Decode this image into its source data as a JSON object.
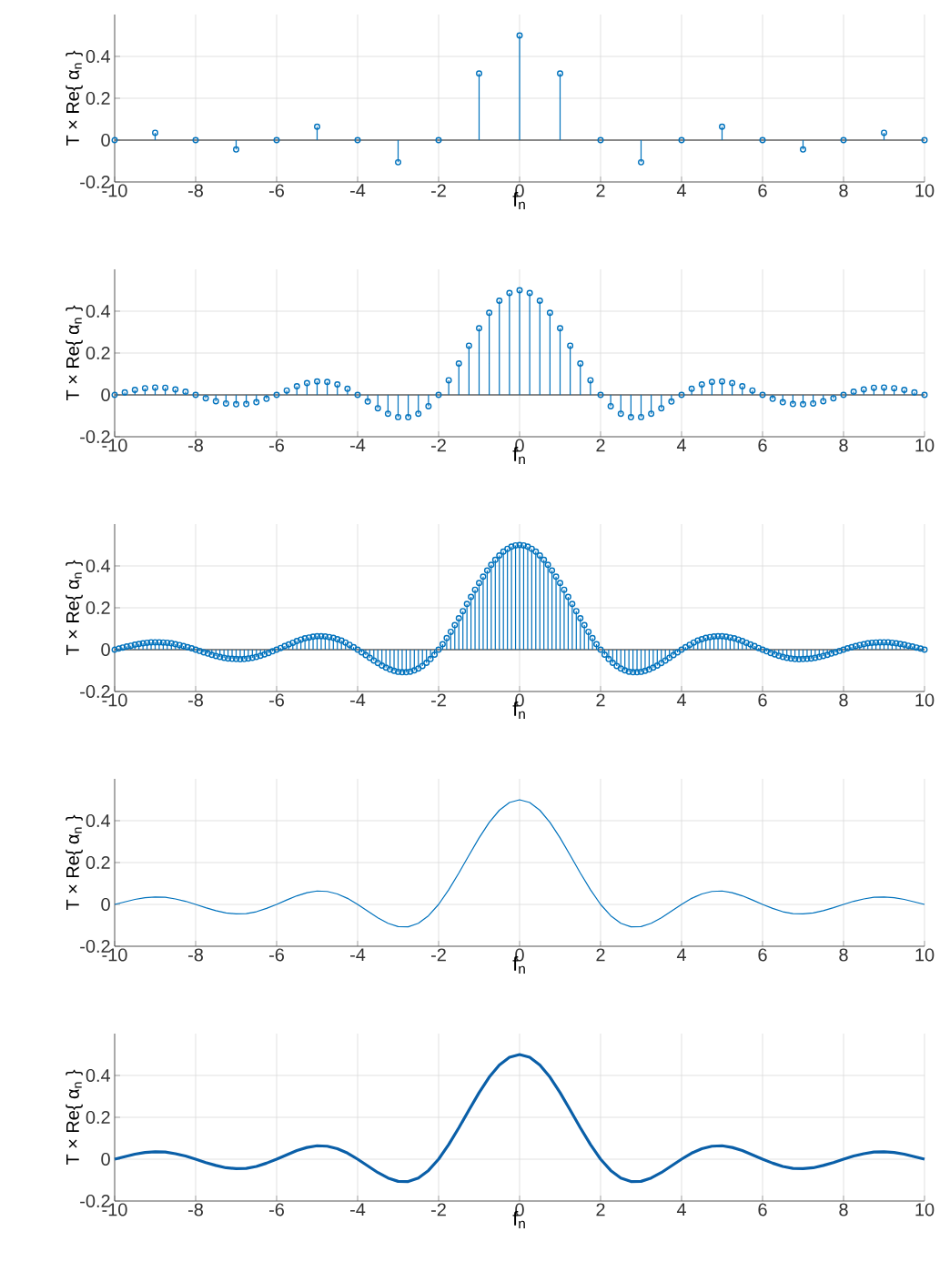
{
  "chart_data": [
    {
      "type": "lollipop",
      "xlabel": "f$_{n}$",
      "ylabel": "T × Re{ α$_{n}$ }",
      "color": "#0072bd",
      "marker": "circle",
      "grid": true,
      "xlim": [
        -10,
        10
      ],
      "ylim": [
        -0.2,
        0.6
      ],
      "xticks": [
        -10,
        -8,
        -6,
        -4,
        -2,
        0,
        2,
        4,
        6,
        8,
        10
      ],
      "yticks": [
        -0.2,
        0,
        0.2,
        0.4
      ],
      "x": [
        -10,
        -9,
        -8,
        -7,
        -6,
        -5,
        -4,
        -3,
        -2,
        -1,
        0,
        1,
        2,
        3,
        4,
        5,
        6,
        7,
        8,
        9,
        10
      ],
      "values": [
        0,
        0.035,
        0,
        -0.045,
        0,
        0.064,
        0,
        -0.106,
        0,
        0.318,
        0.5,
        0.318,
        0,
        -0.106,
        0,
        0.064,
        0,
        -0.045,
        0,
        0.035,
        0
      ]
    },
    {
      "type": "lollipop",
      "xlabel": "f$_{n}$",
      "ylabel": "T × Re{ α$_{n}$ }",
      "color": "#0072bd",
      "marker": "circle",
      "grid": true,
      "xlim": [
        -10,
        10
      ],
      "ylim": [
        -0.2,
        0.6
      ],
      "xticks": [
        -10,
        -8,
        -6,
        -4,
        -2,
        0,
        2,
        4,
        6,
        8,
        10
      ],
      "yticks": [
        -0.2,
        0,
        0.2,
        0.4
      ],
      "x": [
        -10,
        -9.75,
        -9.5,
        -9.25,
        -9,
        -8.75,
        -8.5,
        -8.25,
        -8,
        -7.75,
        -7.5,
        -7.25,
        -7,
        -6.75,
        -6.5,
        -6.25,
        -6,
        -5.75,
        -5.5,
        -5.25,
        -5,
        -4.75,
        -4.5,
        -4.25,
        -4,
        -3.75,
        -3.5,
        -3.25,
        -3,
        -2.75,
        -2.5,
        -2.25,
        -2,
        -1.75,
        -1.5,
        -1.25,
        -1,
        -0.75,
        -0.5,
        -0.25,
        0,
        0.25,
        0.5,
        0.75,
        1,
        1.25,
        1.5,
        1.75,
        2,
        2.25,
        2.5,
        2.75,
        3,
        3.25,
        3.5,
        3.75,
        4,
        4.25,
        4.5,
        4.75,
        5,
        5.25,
        5.5,
        5.75,
        6,
        6.25,
        6.5,
        6.75,
        7,
        7.25,
        7.5,
        7.75,
        8,
        8.25,
        8.5,
        8.75,
        9,
        9.25,
        9.5,
        9.75,
        10
      ],
      "values": [
        0,
        0.012,
        0.024,
        0.032,
        0.035,
        0.034,
        0.026,
        0.015,
        0,
        -0.016,
        -0.03,
        -0.041,
        -0.045,
        -0.044,
        -0.035,
        -0.019,
        0,
        0.021,
        0.041,
        0.056,
        0.064,
        0.062,
        0.05,
        0.029,
        0,
        -0.032,
        -0.064,
        -0.09,
        -0.106,
        -0.107,
        -0.09,
        -0.054,
        0,
        0.07,
        0.15,
        0.235,
        0.318,
        0.392,
        0.45,
        0.487,
        0.5,
        0.487,
        0.45,
        0.392,
        0.318,
        0.235,
        0.15,
        0.07,
        0,
        -0.054,
        -0.09,
        -0.107,
        -0.106,
        -0.09,
        -0.064,
        -0.032,
        0,
        0.029,
        0.05,
        0.062,
        0.064,
        0.056,
        0.041,
        0.021,
        0,
        -0.019,
        -0.035,
        -0.044,
        -0.045,
        -0.041,
        -0.03,
        -0.016,
        0,
        0.015,
        0.026,
        0.034,
        0.035,
        0.032,
        0.024,
        0.012,
        0
      ]
    },
    {
      "type": "lollipop",
      "xlabel": "f$_{n}$",
      "ylabel": "T × Re{ α$_{n}$ }",
      "color": "#0072bd",
      "marker": "circle",
      "grid": true,
      "xlim": [
        -10,
        10
      ],
      "ylim": [
        -0.2,
        0.6
      ],
      "xticks": [
        -10,
        -8,
        -6,
        -4,
        -2,
        0,
        2,
        4,
        6,
        8,
        10
      ],
      "yticks": [
        -0.2,
        0,
        0.2,
        0.4
      ],
      "x": [
        -10,
        -9.9,
        -9.8,
        -9.7,
        -9.6,
        -9.5,
        -9.4,
        -9.3,
        -9.2,
        -9.1,
        -9,
        -8.9,
        -8.8,
        -8.7,
        -8.6,
        -8.5,
        -8.4,
        -8.3,
        -8.2,
        -8.1,
        -8,
        -7.9,
        -7.8,
        -7.7,
        -7.6,
        -7.5,
        -7.4,
        -7.3,
        -7.2,
        -7.1,
        -7,
        -6.9,
        -6.8,
        -6.7,
        -6.6,
        -6.5,
        -6.4,
        -6.3,
        -6.2,
        -6.1,
        -6,
        -5.9,
        -5.8,
        -5.7,
        -5.6,
        -5.5,
        -5.4,
        -5.3,
        -5.2,
        -5.1,
        -5,
        -4.9,
        -4.8,
        -4.7,
        -4.6,
        -4.5,
        -4.4,
        -4.3,
        -4.2,
        -4.1,
        -4,
        -3.9,
        -3.8,
        -3.7,
        -3.6,
        -3.5,
        -3.4,
        -3.3,
        -3.2,
        -3.1,
        -3,
        -2.9,
        -2.8,
        -2.7,
        -2.6,
        -2.5,
        -2.4,
        -2.3,
        -2.2,
        -2.1,
        -2,
        -1.9,
        -1.8,
        -1.7,
        -1.6,
        -1.5,
        -1.4,
        -1.3,
        -1.2,
        -1.1,
        -1,
        -0.9,
        -0.8,
        -0.7,
        -0.6,
        -0.5,
        -0.4,
        -0.3,
        -0.2,
        -0.1,
        0,
        0.1,
        0.2,
        0.3,
        0.4,
        0.5,
        0.6,
        0.7,
        0.8,
        0.9,
        1,
        1.1,
        1.2,
        1.3,
        1.4,
        1.5,
        1.6,
        1.7,
        1.8,
        1.9,
        2,
        2.1,
        2.2,
        2.3,
        2.4,
        2.5,
        2.6,
        2.7,
        2.8,
        2.9,
        3,
        3.1,
        3.2,
        3.3,
        3.4,
        3.5,
        3.6,
        3.7,
        3.8,
        3.9,
        4,
        4.1,
        4.2,
        4.3,
        4.4,
        4.5,
        4.6,
        4.7,
        4.8,
        4.9,
        5,
        5.1,
        5.2,
        5.3,
        5.4,
        5.5,
        5.6,
        5.7,
        5.8,
        5.9,
        6,
        6.1,
        6.2,
        6.3,
        6.4,
        6.5,
        6.6,
        6.7,
        6.8,
        6.9,
        7,
        7.1,
        7.2,
        7.3,
        7.4,
        7.5,
        7.6,
        7.7,
        7.8,
        7.9,
        8,
        8.1,
        8.2,
        8.3,
        8.4,
        8.5,
        8.6,
        8.7,
        8.8,
        8.9,
        9,
        9.1,
        9.2,
        9.3,
        9.4,
        9.5,
        9.6,
        9.7,
        9.8,
        9.9,
        10
      ],
      "values": [
        0,
        0.005,
        0.01,
        0.015,
        0.019,
        0.024,
        0.027,
        0.03,
        0.033,
        0.035,
        0.035,
        0.035,
        0.034,
        0.033,
        0.03,
        0.026,
        0.022,
        0.017,
        0.012,
        0.006,
        0,
        -0.006,
        -0.013,
        -0.019,
        -0.025,
        -0.03,
        -0.035,
        -0.039,
        -0.042,
        -0.044,
        -0.045,
        -0.046,
        -0.045,
        -0.042,
        -0.039,
        -0.035,
        -0.029,
        -0.023,
        -0.016,
        -0.008,
        0,
        0.008,
        0.017,
        0.025,
        0.033,
        0.041,
        0.048,
        0.054,
        0.058,
        0.062,
        0.064,
        0.064,
        0.063,
        0.06,
        0.056,
        0.05,
        0.043,
        0.034,
        0.023,
        0.012,
        0,
        -0.013,
        -0.026,
        -0.039,
        -0.052,
        -0.064,
        -0.076,
        -0.086,
        -0.095,
        -0.101,
        -0.106,
        -0.108,
        -0.108,
        -0.105,
        -0.099,
        -0.09,
        -0.078,
        -0.063,
        -0.045,
        -0.024,
        0,
        0.026,
        0.055,
        0.085,
        0.117,
        0.15,
        0.184,
        0.218,
        0.252,
        0.286,
        0.318,
        0.349,
        0.378,
        0.405,
        0.429,
        0.45,
        0.468,
        0.482,
        0.492,
        0.498,
        0.5,
        0.498,
        0.492,
        0.482,
        0.468,
        0.45,
        0.429,
        0.405,
        0.378,
        0.349,
        0.318,
        0.286,
        0.252,
        0.218,
        0.184,
        0.15,
        0.117,
        0.085,
        0.055,
        0.026,
        0,
        -0.024,
        -0.045,
        -0.063,
        -0.078,
        -0.09,
        -0.099,
        -0.105,
        -0.108,
        -0.108,
        -0.106,
        -0.101,
        -0.095,
        -0.086,
        -0.076,
        -0.064,
        -0.052,
        -0.039,
        -0.026,
        -0.013,
        0,
        0.012,
        0.023,
        0.034,
        0.043,
        0.05,
        0.056,
        0.06,
        0.063,
        0.064,
        0.064,
        0.062,
        0.058,
        0.054,
        0.048,
        0.041,
        0.033,
        0.025,
        0.017,
        0.008,
        0,
        -0.008,
        -0.016,
        -0.023,
        -0.029,
        -0.035,
        -0.039,
        -0.042,
        -0.045,
        -0.046,
        -0.045,
        -0.044,
        -0.042,
        -0.039,
        -0.035,
        -0.03,
        -0.025,
        -0.019,
        -0.013,
        -0.006,
        0,
        0.006,
        0.012,
        0.017,
        0.022,
        0.026,
        0.03,
        0.033,
        0.034,
        0.035,
        0.035,
        0.035,
        0.033,
        0.03,
        0.027,
        0.024,
        0.019,
        0.015,
        0.01,
        0.005,
        0
      ]
    },
    {
      "type": "line",
      "xlabel": "f$_{n}$",
      "ylabel": "T × Re{ α$_{n}$ }",
      "color": "#0072bd",
      "grid": true,
      "xlim": [
        -10,
        10
      ],
      "ylim": [
        -0.2,
        0.6
      ],
      "xticks": [
        -10,
        -8,
        -6,
        -4,
        -2,
        0,
        2,
        4,
        6,
        8,
        10
      ],
      "yticks": [
        -0.2,
        0,
        0.2,
        0.4
      ],
      "x": [
        -10,
        -9.75,
        -9.5,
        -9.25,
        -9,
        -8.75,
        -8.5,
        -8.25,
        -8,
        -7.75,
        -7.5,
        -7.25,
        -7,
        -6.75,
        -6.5,
        -6.25,
        -6,
        -5.75,
        -5.5,
        -5.25,
        -5,
        -4.75,
        -4.5,
        -4.25,
        -4,
        -3.75,
        -3.5,
        -3.25,
        -3,
        -2.75,
        -2.5,
        -2.25,
        -2,
        -1.75,
        -1.5,
        -1.25,
        -1,
        -0.75,
        -0.5,
        -0.25,
        0,
        0.25,
        0.5,
        0.75,
        1,
        1.25,
        1.5,
        1.75,
        2,
        2.25,
        2.5,
        2.75,
        3,
        3.25,
        3.5,
        3.75,
        4,
        4.25,
        4.5,
        4.75,
        5,
        5.25,
        5.5,
        5.75,
        6,
        6.25,
        6.5,
        6.75,
        7,
        7.25,
        7.5,
        7.75,
        8,
        8.25,
        8.5,
        8.75,
        9,
        9.25,
        9.5,
        9.75,
        10
      ],
      "values": [
        0,
        0.012,
        0.024,
        0.032,
        0.035,
        0.034,
        0.026,
        0.015,
        0,
        -0.016,
        -0.03,
        -0.041,
        -0.045,
        -0.044,
        -0.035,
        -0.019,
        0,
        0.021,
        0.041,
        0.056,
        0.064,
        0.062,
        0.05,
        0.029,
        0,
        -0.032,
        -0.064,
        -0.09,
        -0.106,
        -0.107,
        -0.09,
        -0.054,
        0,
        0.07,
        0.15,
        0.235,
        0.318,
        0.392,
        0.45,
        0.487,
        0.5,
        0.487,
        0.45,
        0.392,
        0.318,
        0.235,
        0.15,
        0.07,
        0,
        -0.054,
        -0.09,
        -0.107,
        -0.106,
        -0.09,
        -0.064,
        -0.032,
        0,
        0.029,
        0.05,
        0.062,
        0.064,
        0.056,
        0.041,
        0.021,
        0,
        -0.019,
        -0.035,
        -0.044,
        -0.045,
        -0.041,
        -0.03,
        -0.016,
        0,
        0.015,
        0.026,
        0.034,
        0.035,
        0.032,
        0.024,
        0.012,
        0
      ]
    },
    {
      "type": "line",
      "xlabel": "f$_{n}$",
      "ylabel": "T × Re{ α$_{n}$ }",
      "color": "#0a5fa8",
      "grid": true,
      "xlim": [
        -10,
        10
      ],
      "ylim": [
        -0.2,
        0.6
      ],
      "xticks": [
        -10,
        -8,
        -6,
        -4,
        -2,
        0,
        2,
        4,
        6,
        8,
        10
      ],
      "yticks": [
        -0.2,
        0,
        0.2,
        0.4
      ],
      "x": [
        -10,
        -9.75,
        -9.5,
        -9.25,
        -9,
        -8.75,
        -8.5,
        -8.25,
        -8,
        -7.75,
        -7.5,
        -7.25,
        -7,
        -6.75,
        -6.5,
        -6.25,
        -6,
        -5.75,
        -5.5,
        -5.25,
        -5,
        -4.75,
        -4.5,
        -4.25,
        -4,
        -3.75,
        -3.5,
        -3.25,
        -3,
        -2.75,
        -2.5,
        -2.25,
        -2,
        -1.75,
        -1.5,
        -1.25,
        -1,
        -0.75,
        -0.5,
        -0.25,
        0,
        0.25,
        0.5,
        0.75,
        1,
        1.25,
        1.5,
        1.75,
        2,
        2.25,
        2.5,
        2.75,
        3,
        3.25,
        3.5,
        3.75,
        4,
        4.25,
        4.5,
        4.75,
        5,
        5.25,
        5.5,
        5.75,
        6,
        6.25,
        6.5,
        6.75,
        7,
        7.25,
        7.5,
        7.75,
        8,
        8.25,
        8.5,
        8.75,
        9,
        9.25,
        9.5,
        9.75,
        10
      ],
      "values": [
        0,
        0.012,
        0.024,
        0.032,
        0.035,
        0.034,
        0.026,
        0.015,
        0,
        -0.016,
        -0.03,
        -0.041,
        -0.045,
        -0.044,
        -0.035,
        -0.019,
        0,
        0.021,
        0.041,
        0.056,
        0.064,
        0.062,
        0.05,
        0.029,
        0,
        -0.032,
        -0.064,
        -0.09,
        -0.106,
        -0.107,
        -0.09,
        -0.054,
        0,
        0.07,
        0.15,
        0.235,
        0.318,
        0.392,
        0.45,
        0.487,
        0.5,
        0.487,
        0.45,
        0.392,
        0.318,
        0.235,
        0.15,
        0.07,
        0,
        -0.054,
        -0.09,
        -0.107,
        -0.106,
        -0.09,
        -0.064,
        -0.032,
        0,
        0.029,
        0.05,
        0.062,
        0.064,
        0.056,
        0.041,
        0.021,
        0,
        -0.019,
        -0.035,
        -0.044,
        -0.045,
        -0.041,
        -0.03,
        -0.016,
        0,
        0.015,
        0.026,
        0.034,
        0.035,
        0.032,
        0.024,
        0.012,
        0
      ]
    }
  ]
}
